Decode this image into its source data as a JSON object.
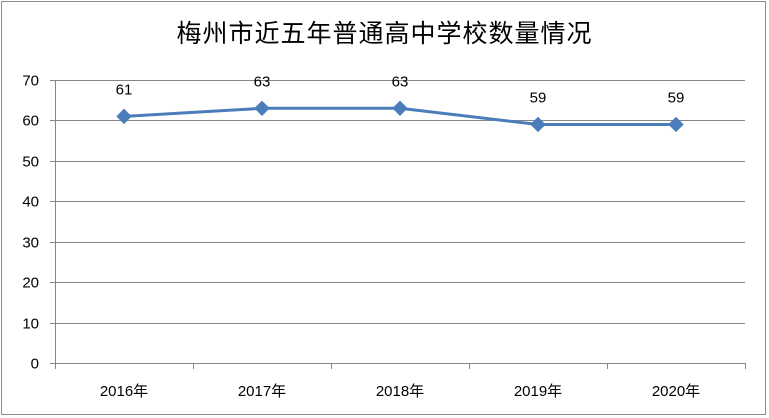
{
  "chart_data": {
    "type": "line",
    "title": "梅州市近五年普通高中学校数量情况",
    "categories": [
      "2016年",
      "2017年",
      "2018年",
      "2019年",
      "2020年"
    ],
    "series": [
      {
        "values": [
          61,
          63,
          63,
          59,
          59
        ]
      }
    ],
    "ylim": [
      0,
      70
    ],
    "yticks": [
      0,
      10,
      20,
      30,
      40,
      50,
      60,
      70
    ],
    "grid": true,
    "legend": "none",
    "data_labels": true,
    "colors": {
      "line": "#4a7ebb",
      "marker": "#4a7ebb",
      "grid": "#868686",
      "axis": "#868686"
    }
  }
}
